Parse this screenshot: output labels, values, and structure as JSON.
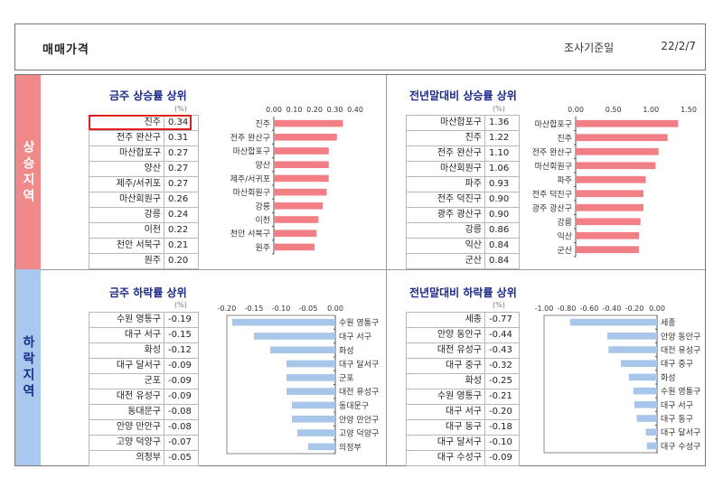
{
  "header": {
    "title": "매매가격",
    "date_label": "조사기준일",
    "date": "22/2/7"
  },
  "sections": {
    "up": "상승지역",
    "down": "하락지역"
  },
  "unit": "(%)",
  "colors": {
    "up_bar": "#f27f86",
    "down_bar": "#a8c6ea",
    "title": "#1c2a8c",
    "up_side": "#f08a8a",
    "down_side": "#a9c8ee"
  },
  "panels": {
    "weekly_up": {
      "title": "금주 상승률 상위",
      "highlight": "진주",
      "rows": [
        [
          "진주",
          "0.34"
        ],
        [
          "전주 완산구",
          "0.31"
        ],
        [
          "마산합포구",
          "0.27"
        ],
        [
          "양산",
          "0.27"
        ],
        [
          "제주/서귀포",
          "0.27"
        ],
        [
          "마산회원구",
          "0.26"
        ],
        [
          "강릉",
          "0.24"
        ],
        [
          "이천",
          "0.22"
        ],
        [
          "천안 서북구",
          "0.21"
        ],
        [
          "원주",
          "0.20"
        ]
      ]
    },
    "yoy_up": {
      "title": "전년말대비 상승률 상위",
      "rows": [
        [
          "마산합포구",
          "1.36"
        ],
        [
          "진주",
          "1.22"
        ],
        [
          "전주 완산구",
          "1.10"
        ],
        [
          "마산회원구",
          "1.06"
        ],
        [
          "파주",
          "0.93"
        ],
        [
          "전주 덕진구",
          "0.90"
        ],
        [
          "광주 광산구",
          "0.90"
        ],
        [
          "강릉",
          "0.86"
        ],
        [
          "익산",
          "0.84"
        ],
        [
          "군산",
          "0.84"
        ]
      ]
    },
    "weekly_down": {
      "title": "금주 하락률 상위",
      "rows": [
        [
          "수원 영통구",
          "-0.19"
        ],
        [
          "대구 서구",
          "-0.15"
        ],
        [
          "화성",
          "-0.12"
        ],
        [
          "대구 달서구",
          "-0.09"
        ],
        [
          "군포",
          "-0.09"
        ],
        [
          "대전 유성구",
          "-0.09"
        ],
        [
          "동대문구",
          "-0.08"
        ],
        [
          "안양 만안구",
          "-0.08"
        ],
        [
          "고양 덕양구",
          "-0.07"
        ],
        [
          "의정부",
          "-0.05"
        ]
      ]
    },
    "yoy_down": {
      "title": "전년말대비 하락률 상위",
      "rows": [
        [
          "세종",
          "-0.77"
        ],
        [
          "안양 동안구",
          "-0.44"
        ],
        [
          "대전 유성구",
          "-0.43"
        ],
        [
          "대구 중구",
          "-0.32"
        ],
        [
          "화성",
          "-0.25"
        ],
        [
          "수원 영통구",
          "-0.21"
        ],
        [
          "대구 서구",
          "-0.20"
        ],
        [
          "대구 동구",
          "-0.18"
        ],
        [
          "대구 달서구",
          "-0.10"
        ],
        [
          "대구 수성구",
          "-0.09"
        ]
      ]
    }
  },
  "chart_data": [
    {
      "type": "bar",
      "orientation": "horizontal",
      "categories": [
        "진주",
        "전주 완산구",
        "마산합포구",
        "양산",
        "제주/서귀포",
        "마산회원구",
        "강릉",
        "이천",
        "천안 서북구",
        "원주"
      ],
      "values": [
        0.34,
        0.31,
        0.27,
        0.27,
        0.27,
        0.26,
        0.24,
        0.22,
        0.21,
        0.2
      ],
      "xlim": [
        0,
        0.4
      ],
      "ticks": [
        "0.00",
        "0.10",
        "0.20",
        "0.30",
        "0.40"
      ],
      "tick_values": [
        0,
        0.1,
        0.2,
        0.3,
        0.4
      ]
    },
    {
      "type": "bar",
      "orientation": "horizontal",
      "categories": [
        "마산합포구",
        "진주",
        "전주 완산구",
        "마산회원구",
        "파주",
        "전주 덕진구",
        "광주 광산구",
        "강릉",
        "익산",
        "군산"
      ],
      "values": [
        1.36,
        1.22,
        1.1,
        1.06,
        0.93,
        0.9,
        0.9,
        0.86,
        0.84,
        0.84
      ],
      "xlim": [
        0,
        1.5
      ],
      "ticks": [
        "0.00",
        "0.50",
        "1.00",
        "1.50"
      ],
      "tick_values": [
        0,
        0.5,
        1.0,
        1.5
      ]
    },
    {
      "type": "bar",
      "orientation": "horizontal",
      "categories": [
        "수원 영통구",
        "대구 서구",
        "화성",
        "대구 달서구",
        "군포",
        "대전 유성구",
        "동대문구",
        "안양 만안구",
        "고양 덕양구",
        "의정부"
      ],
      "values": [
        -0.19,
        -0.15,
        -0.12,
        -0.09,
        -0.09,
        -0.09,
        -0.08,
        -0.08,
        -0.07,
        -0.05
      ],
      "xlim": [
        -0.2,
        0.0
      ],
      "ticks": [
        "-0.20",
        "-0.15",
        "-0.10",
        "-0.05",
        "0.00"
      ],
      "tick_values": [
        -0.2,
        -0.15,
        -0.1,
        -0.05,
        0
      ]
    },
    {
      "type": "bar",
      "orientation": "horizontal",
      "categories": [
        "세종",
        "안양 동안구",
        "대전 유성구",
        "대구 중구",
        "화성",
        "수원 영통구",
        "대구 서구",
        "대구 동구",
        "대구 달서구",
        "대구 수성구"
      ],
      "values": [
        -0.77,
        -0.44,
        -0.43,
        -0.32,
        -0.25,
        -0.21,
        -0.2,
        -0.18,
        -0.1,
        -0.09
      ],
      "xlim": [
        -1.0,
        0.0
      ],
      "ticks": [
        "-1.00",
        "-0.80",
        "-0.60",
        "-0.40",
        "-0.20",
        "0.00"
      ],
      "tick_values": [
        -1.0,
        -0.8,
        -0.6,
        -0.4,
        -0.2,
        0
      ]
    }
  ]
}
